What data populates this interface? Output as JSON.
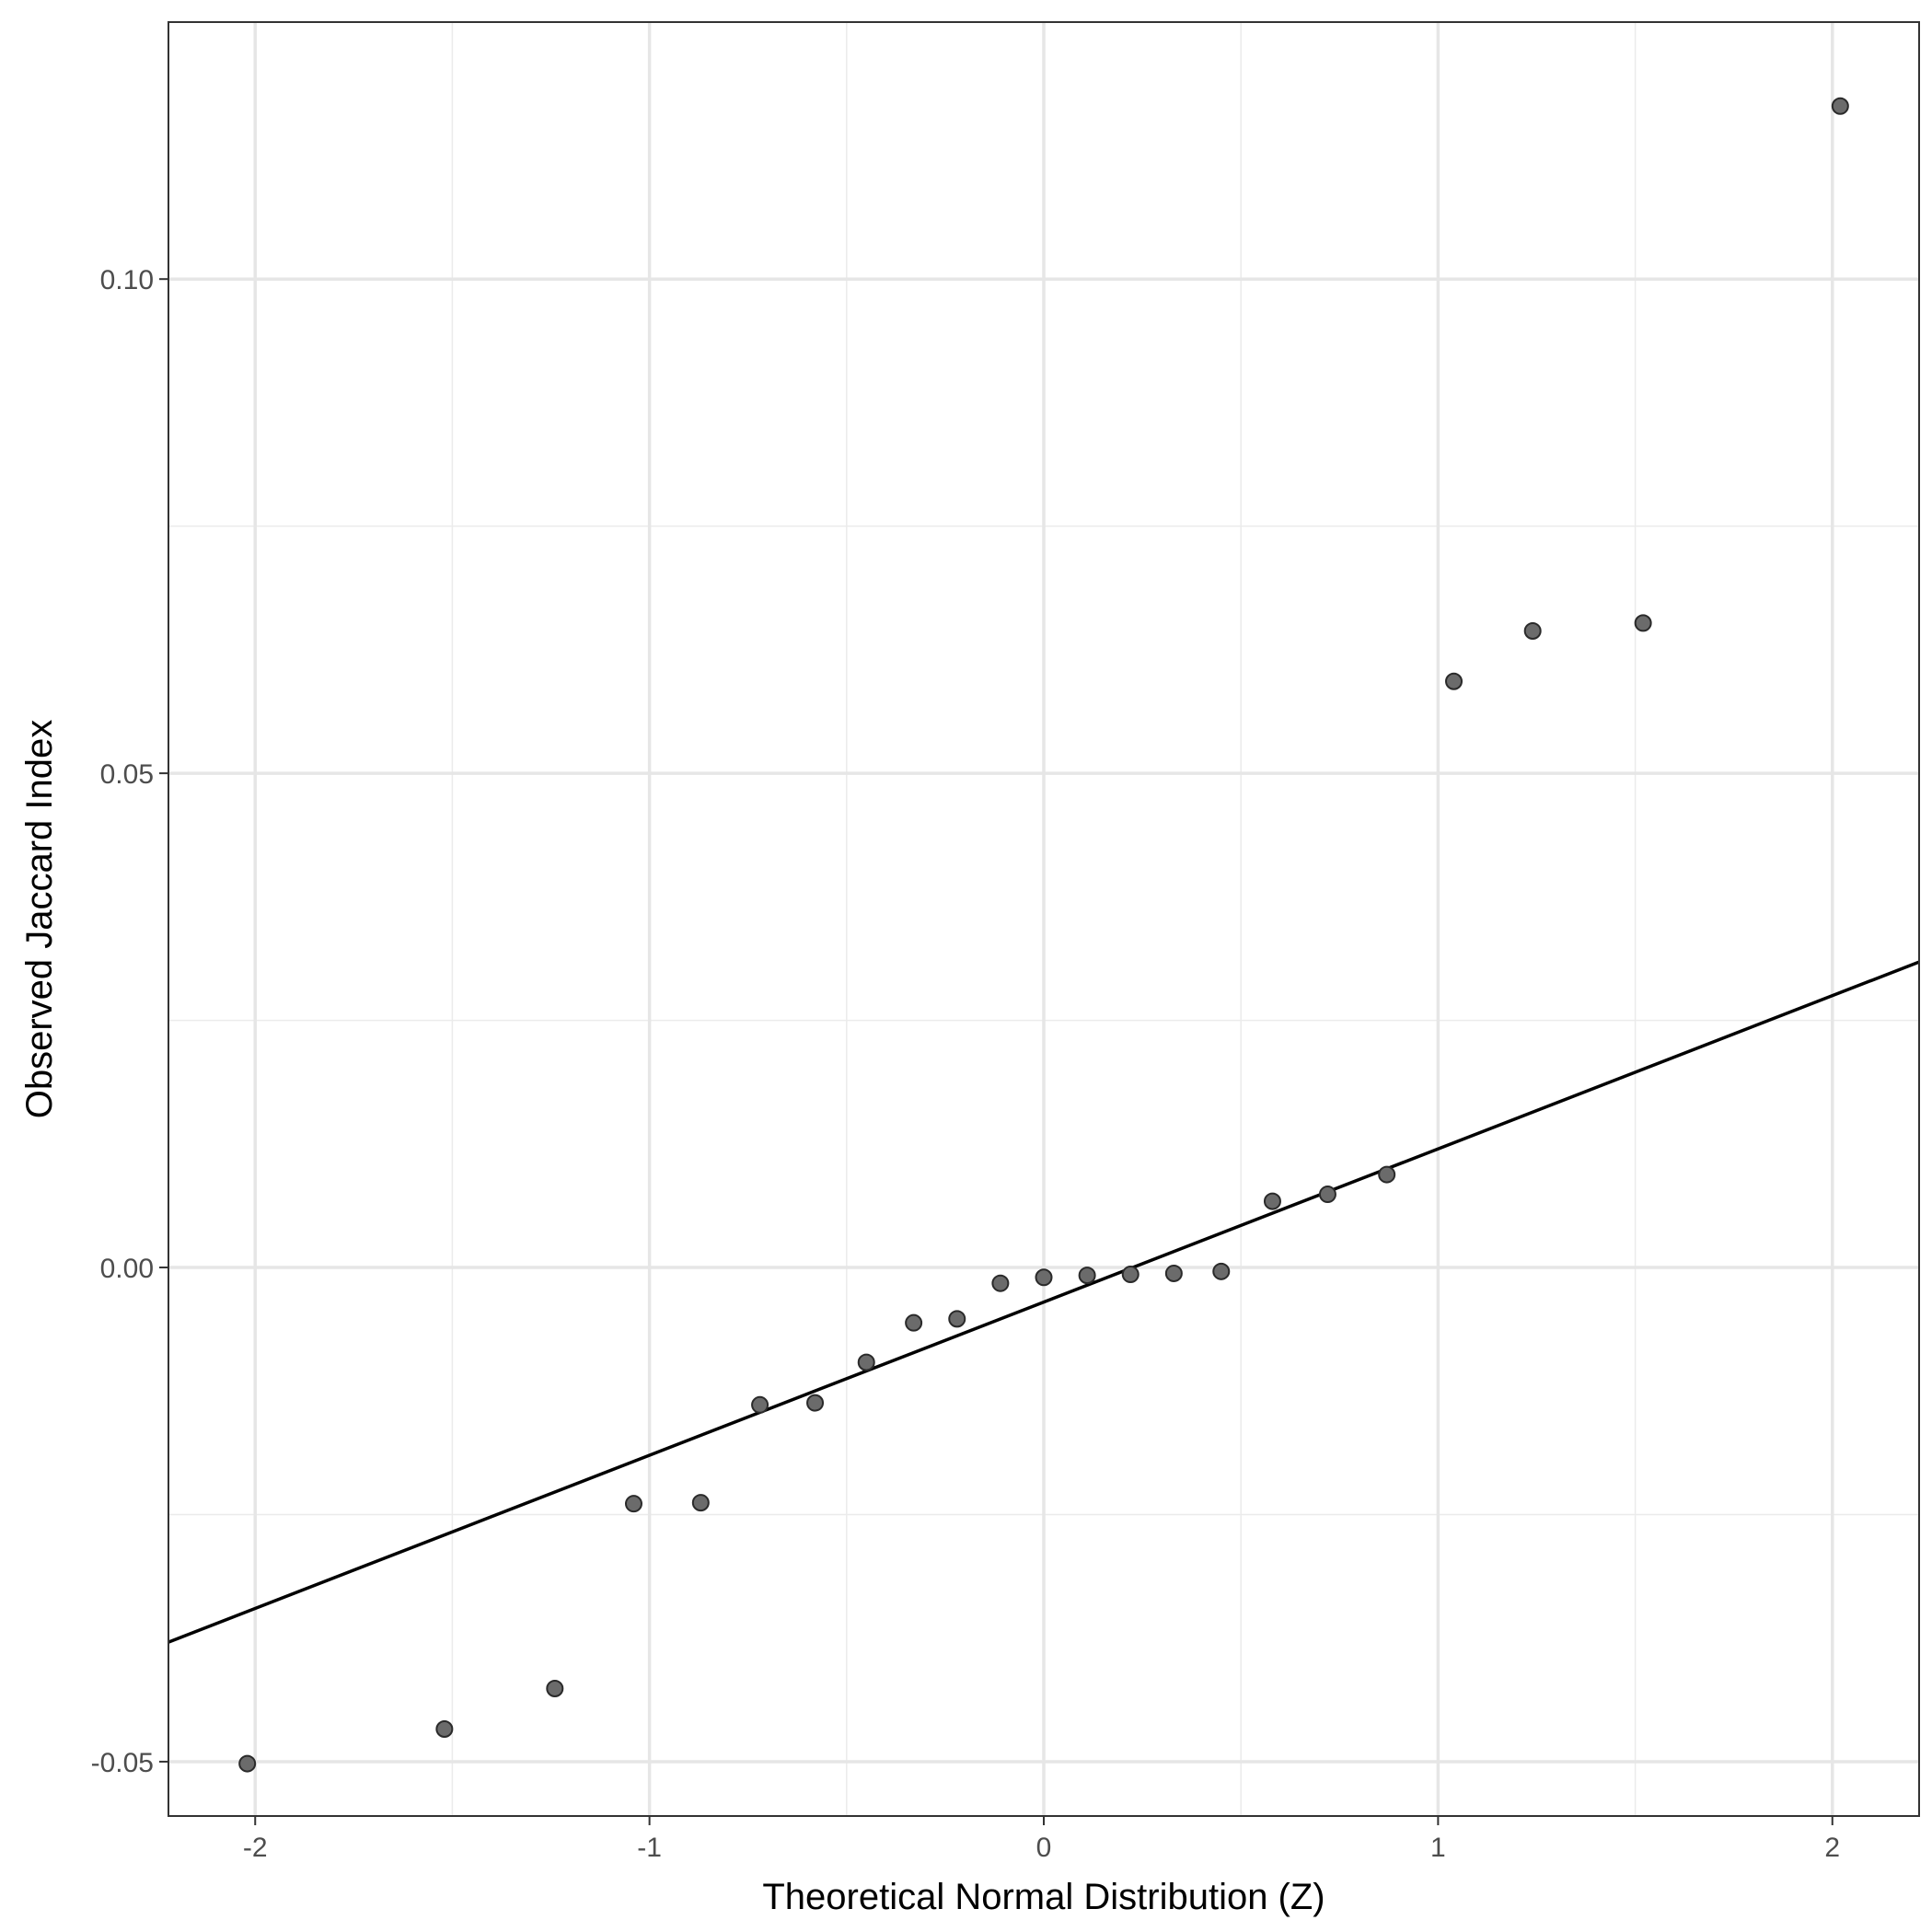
{
  "chart_data": {
    "type": "scatter",
    "title": "",
    "xlabel": "Theoretical Normal Distribution (Z)",
    "ylabel": "Observed Jaccard Index",
    "xlim": [
      -2.22,
      2.22
    ],
    "ylim": [
      -0.0555,
      0.126
    ],
    "x_ticks": [
      -2,
      -1,
      0,
      1,
      2
    ],
    "x_tick_labels": [
      "-2",
      "-1",
      "0",
      "1",
      "2"
    ],
    "x_minor_ticks": [
      -1.5,
      -0.5,
      0.5,
      1.5
    ],
    "y_ticks": [
      -0.05,
      0.0,
      0.05,
      0.1
    ],
    "y_tick_labels": [
      "-0.05",
      "0.00",
      "0.05",
      "0.10"
    ],
    "y_minor_ticks": [
      -0.025,
      0.025,
      0.075
    ],
    "grid": true,
    "theme": "bw",
    "point_color": "#6b6b6b",
    "point_stroke": "#2a2a2a",
    "line_color": "#000000",
    "points": [
      {
        "x": -2.02,
        "y": -0.0502
      },
      {
        "x": -1.52,
        "y": -0.0467
      },
      {
        "x": -1.24,
        "y": -0.0426
      },
      {
        "x": -1.04,
        "y": -0.0239
      },
      {
        "x": -0.87,
        "y": -0.0238
      },
      {
        "x": -0.72,
        "y": -0.0139
      },
      {
        "x": -0.58,
        "y": -0.0137
      },
      {
        "x": -0.45,
        "y": -0.0096
      },
      {
        "x": -0.33,
        "y": -0.0056
      },
      {
        "x": -0.22,
        "y": -0.0052
      },
      {
        "x": -0.11,
        "y": -0.0016
      },
      {
        "x": 0.0,
        "y": -0.001
      },
      {
        "x": 0.11,
        "y": -0.0008
      },
      {
        "x": 0.22,
        "y": -0.0007
      },
      {
        "x": 0.33,
        "y": -0.0006
      },
      {
        "x": 0.45,
        "y": -0.0004
      },
      {
        "x": 0.58,
        "y": 0.0067
      },
      {
        "x": 0.72,
        "y": 0.0074
      },
      {
        "x": 0.87,
        "y": 0.0094
      },
      {
        "x": 1.04,
        "y": 0.0593
      },
      {
        "x": 1.24,
        "y": 0.0644
      },
      {
        "x": 1.52,
        "y": 0.0652
      },
      {
        "x": 2.02,
        "y": 0.1175
      }
    ],
    "reference_line": {
      "intercept": -0.0035,
      "slope": 0.0155
    }
  }
}
